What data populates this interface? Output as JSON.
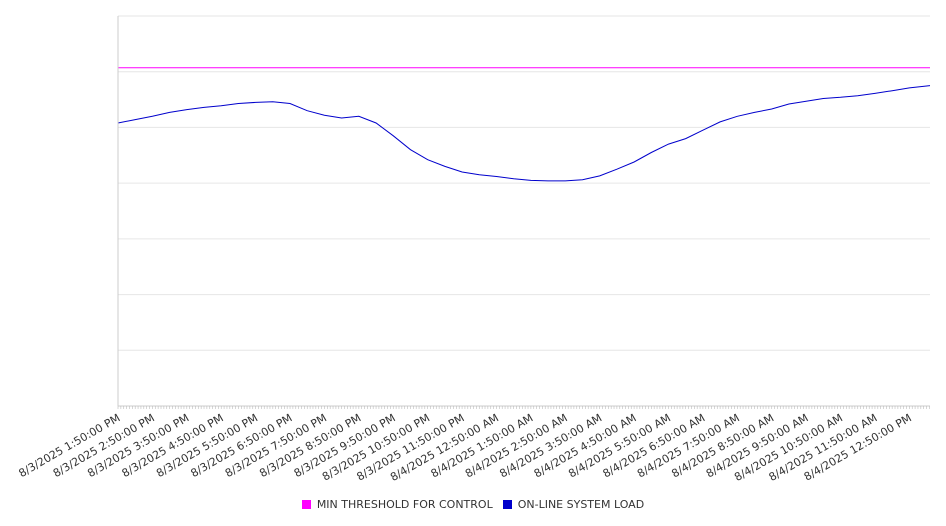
{
  "chart_data": {
    "type": "line",
    "title": "",
    "xlabel": "",
    "ylabel": "",
    "grid": true,
    "legend_position": "bottom",
    "x_tick_labels": [
      "8/3/2025 1:50:00 PM",
      "8/3/2025 2:50:00 PM",
      "8/3/2025 3:50:00 PM",
      "8/3/2025 4:50:00 PM",
      "8/3/2025 5:50:00 PM",
      "8/3/2025 6:50:00 PM",
      "8/3/2025 7:50:00 PM",
      "8/3/2025 8:50:00 PM",
      "8/3/2025 9:50:00 PM",
      "8/3/2025 10:50:00 PM",
      "8/3/2025 11:50:00 PM",
      "8/4/2025 12:50:00 AM",
      "8/4/2025 1:50:00 AM",
      "8/4/2025 2:50:00 AM",
      "8/4/2025 3:50:00 AM",
      "8/4/2025 4:50:00 AM",
      "8/4/2025 5:50:00 AM",
      "8/4/2025 6:50:00 AM",
      "8/4/2025 7:50:00 AM",
      "8/4/2025 8:50:00 AM",
      "8/4/2025 9:50:00 AM",
      "8/4/2025 10:50:00 AM",
      "8/4/2025 11:50:00 AM",
      "8/4/2025 12:50:00 PM"
    ],
    "x_range_hours": [
      0,
      23.6
    ],
    "ylim": [
      0,
      7
    ],
    "gridline_count": 7,
    "series": [
      {
        "name": "MIN THRESHOLD FOR CONTROL",
        "color": "#ff00ff",
        "x": [
          0,
          23.6
        ],
        "values": [
          6.07,
          6.07
        ]
      },
      {
        "name": "ON-LINE SYSTEM LOAD",
        "color": "#0000cc",
        "x": [
          0,
          0.5,
          1,
          1.5,
          2,
          2.5,
          3,
          3.5,
          4,
          4.5,
          5,
          5.5,
          6,
          6.5,
          7,
          7.5,
          8,
          8.5,
          9,
          9.5,
          10,
          10.5,
          11,
          11.5,
          12,
          12.5,
          13,
          13.5,
          14,
          14.5,
          15,
          15.5,
          16,
          16.5,
          17,
          17.5,
          18,
          18.5,
          19,
          19.5,
          20,
          20.5,
          21,
          21.5,
          22,
          22.5,
          23,
          23.6
        ],
        "values": [
          5.08,
          5.14,
          5.2,
          5.27,
          5.32,
          5.36,
          5.39,
          5.43,
          5.45,
          5.46,
          5.43,
          5.3,
          5.22,
          5.17,
          5.2,
          5.08,
          4.85,
          4.6,
          4.42,
          4.3,
          4.2,
          4.15,
          4.12,
          4.08,
          4.05,
          4.04,
          4.04,
          4.06,
          4.13,
          4.25,
          4.38,
          4.55,
          4.7,
          4.8,
          4.95,
          5.1,
          5.2,
          5.27,
          5.33,
          5.42,
          5.47,
          5.52,
          5.54,
          5.57,
          5.61,
          5.66,
          5.71,
          5.75
        ]
      }
    ]
  }
}
